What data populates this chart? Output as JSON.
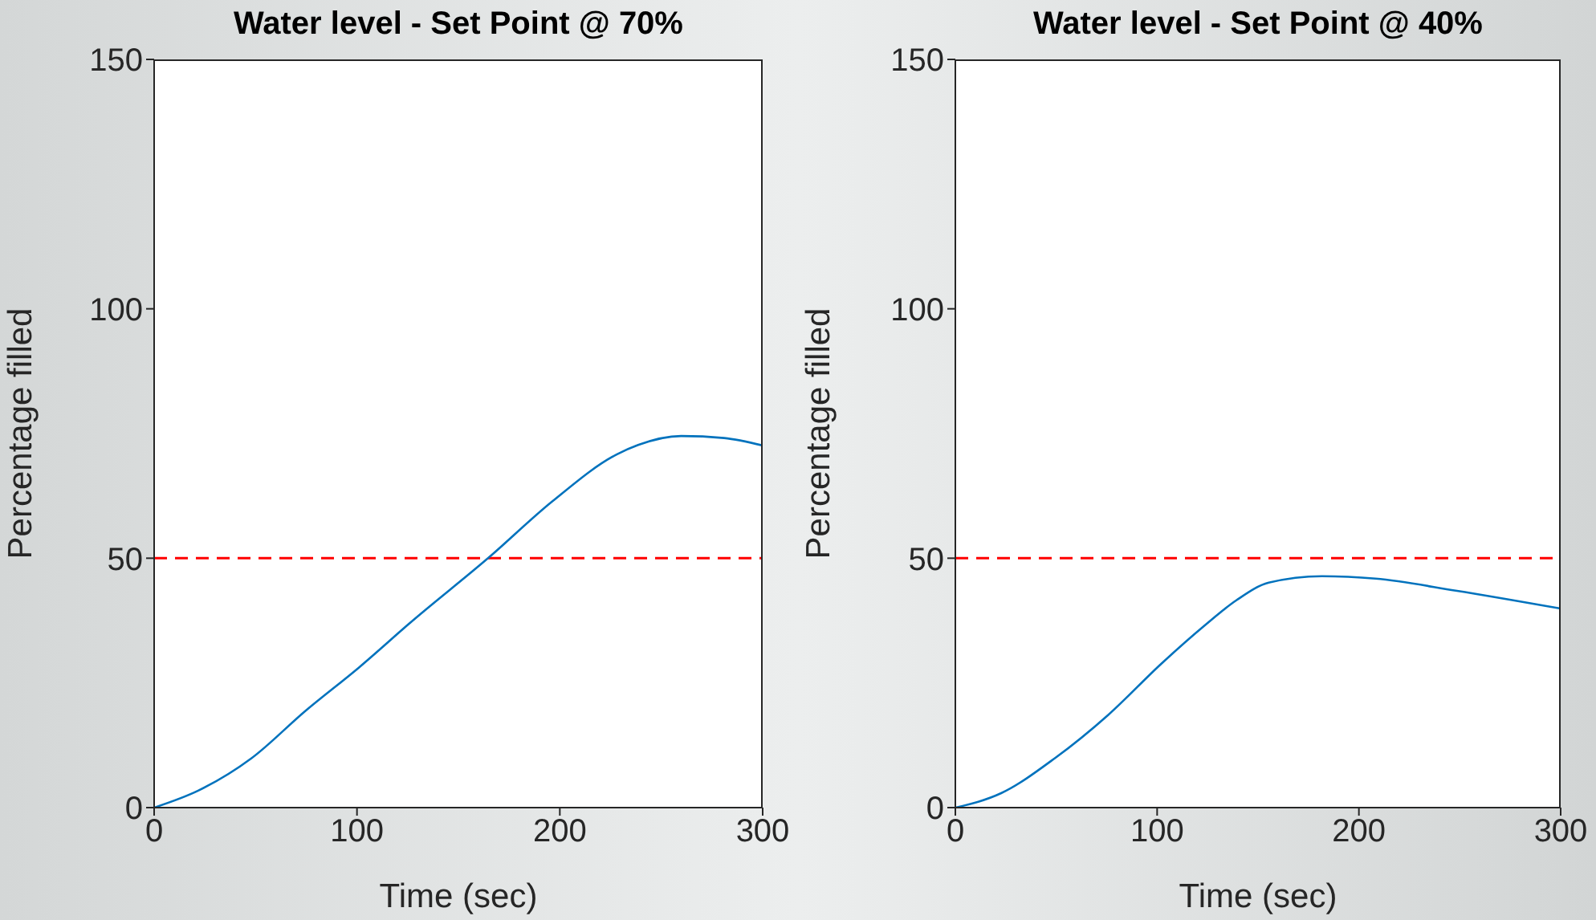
{
  "chart_data": [
    {
      "type": "line",
      "title": "Water level - Set Point @ 70%",
      "xlabel": "Time (sec)",
      "ylabel": "Percentage filled",
      "xlim": [
        0,
        300
      ],
      "ylim": [
        0,
        150
      ],
      "xticks": [
        0,
        100,
        200,
        300
      ],
      "yticks": [
        0,
        50,
        100,
        150
      ],
      "series": [
        {
          "color": "#0072bd",
          "x": [
            0,
            21.7,
            48,
            74.6,
            101,
            127.5,
            164.6,
            196.3,
            228,
            238.6,
            259.8,
            281,
            300
          ],
          "values": [
            0,
            3.4,
            9.9,
            19.4,
            28.1,
            37.5,
            50,
            61.4,
            70.8,
            72.7,
            74.5,
            74.1,
            72.6
          ]
        }
      ],
      "ref_lines": [
        {
          "axis": "y",
          "value": 50,
          "color": "#ff0000",
          "line_style": "dashed"
        }
      ]
    },
    {
      "type": "line",
      "title": "Water level - Set Point @ 40%",
      "xlabel": "Time (sec)",
      "ylabel": "Percentage filled",
      "xlim": [
        0,
        300
      ],
      "ylim": [
        0,
        150
      ],
      "xticks": [
        0,
        100,
        200,
        300
      ],
      "yticks": [
        0,
        50,
        100,
        150
      ],
      "series": [
        {
          "color": "#0072bd",
          "x": [
            0,
            22.7,
            49.3,
            75.8,
            102.2,
            123.5,
            139.4,
            155.3,
            181.7,
            208.3,
            248,
            300
          ],
          "values": [
            0,
            2.9,
            9.9,
            18.6,
            28.9,
            36.5,
            41.6,
            45.1,
            46.4,
            45.9,
            43.5,
            39.9
          ]
        }
      ],
      "ref_lines": [
        {
          "axis": "y",
          "value": 50,
          "color": "#ff0000",
          "line_style": "dashed"
        }
      ]
    }
  ]
}
